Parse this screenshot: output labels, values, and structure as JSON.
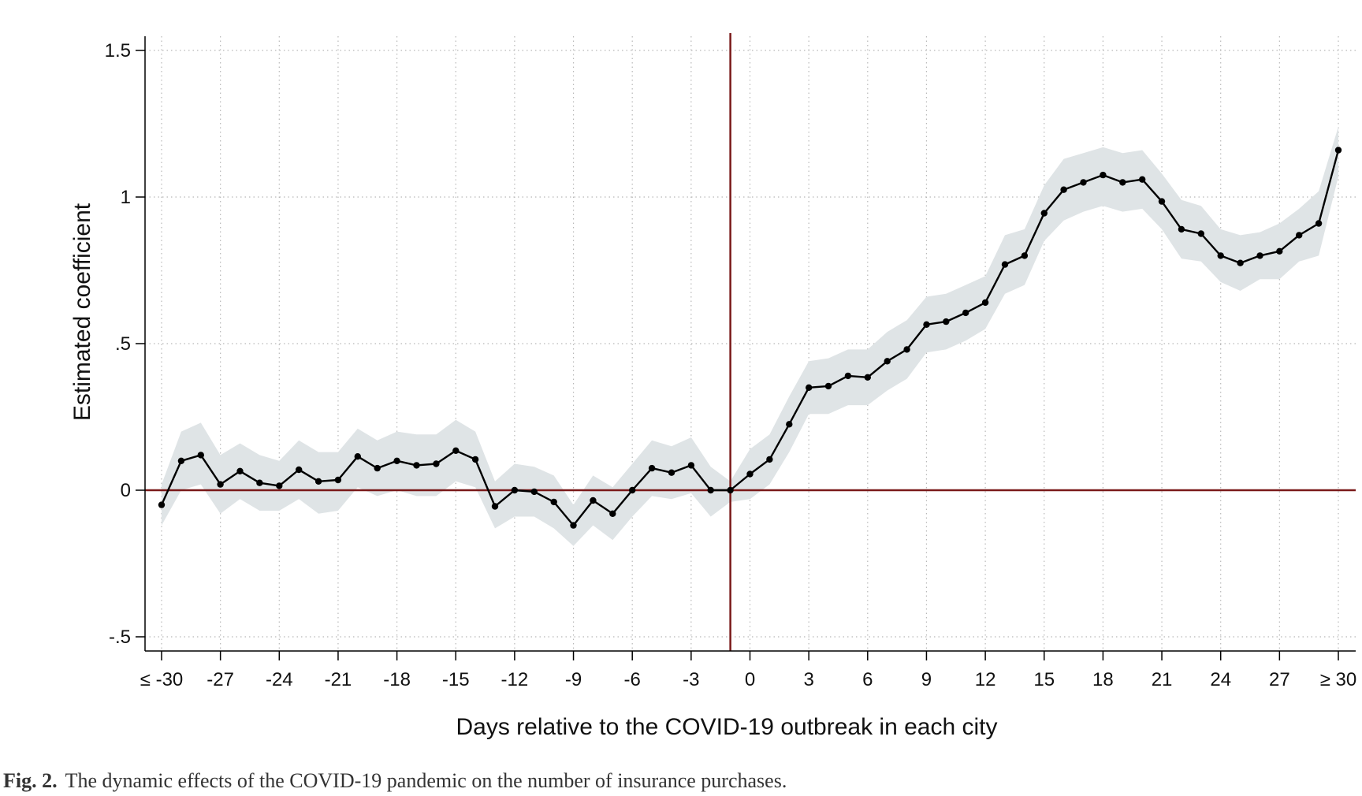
{
  "caption": {
    "label": "Fig. 2.",
    "text": "The dynamic effects of the COVID-19 pandemic on the number of insurance purchases."
  },
  "chart_data": {
    "type": "line",
    "xlabel": "Days relative to the COVID-19 outbreak in each city",
    "ylabel": "Estimated coefficient",
    "xlim": [
      -30,
      30
    ],
    "ylim": [
      -0.5,
      1.5
    ],
    "x_ticks": [
      -30,
      -27,
      -24,
      -21,
      -18,
      -15,
      -12,
      -9,
      -6,
      -3,
      0,
      3,
      6,
      9,
      12,
      15,
      18,
      21,
      24,
      27,
      30
    ],
    "x_tick_labels": [
      "≤ -30",
      "-27",
      "-24",
      "-21",
      "-18",
      "-15",
      "-12",
      "-9",
      "-6",
      "-3",
      "0",
      "3",
      "6",
      "9",
      "12",
      "15",
      "18",
      "21",
      "24",
      "27",
      "≥ 30"
    ],
    "y_ticks": [
      -0.5,
      0,
      0.5,
      1,
      1.5
    ],
    "y_tick_labels": [
      "-.5",
      "0",
      ".5",
      "1",
      "1.5"
    ],
    "reference_lines": {
      "x": -1,
      "y": 0,
      "color": "#7a1a1a"
    },
    "grid": true,
    "grid_style": "dotted",
    "colors": {
      "line": "#000000",
      "ci_band": "#dfe4e6",
      "reference": "#7a1a1a"
    },
    "x": [
      -30,
      -29,
      -28,
      -27,
      -26,
      -25,
      -24,
      -23,
      -22,
      -21,
      -20,
      -19,
      -18,
      -17,
      -16,
      -15,
      -14,
      -13,
      -12,
      -11,
      -10,
      -9,
      -8,
      -7,
      -6,
      -5,
      -4,
      -3,
      -2,
      -1,
      0,
      1,
      2,
      3,
      4,
      5,
      6,
      7,
      8,
      9,
      10,
      11,
      12,
      13,
      14,
      15,
      16,
      17,
      18,
      19,
      20,
      21,
      22,
      23,
      24,
      25,
      26,
      27,
      28,
      29,
      30
    ],
    "series": [
      {
        "values": [
          -0.05,
          0.1,
          0.12,
          0.02,
          0.065,
          0.025,
          0.015,
          0.07,
          0.03,
          0.035,
          0.115,
          0.075,
          0.1,
          0.085,
          0.09,
          0.135,
          0.105,
          -0.055,
          0.0,
          -0.005,
          -0.04,
          -0.12,
          -0.035,
          -0.08,
          0.0,
          0.075,
          0.06,
          0.085,
          0.0,
          0.0,
          0.055,
          0.105,
          0.225,
          0.35,
          0.355,
          0.39,
          0.385,
          0.44,
          0.48,
          0.565,
          0.575,
          0.605,
          0.64,
          0.77,
          0.8,
          0.945,
          1.025,
          1.05,
          1.075,
          1.05,
          1.06,
          0.985,
          0.89,
          0.875,
          0.8,
          0.775,
          0.8,
          0.815,
          0.87,
          0.91,
          1.16
        ],
        "ci_lower": [
          -0.12,
          0.0,
          0.02,
          -0.08,
          -0.03,
          -0.07,
          -0.07,
          -0.03,
          -0.08,
          -0.07,
          0.01,
          -0.02,
          0.0,
          -0.02,
          -0.02,
          0.03,
          0.01,
          -0.13,
          -0.09,
          -0.09,
          -0.13,
          -0.19,
          -0.12,
          -0.17,
          -0.09,
          -0.02,
          -0.03,
          -0.01,
          -0.09,
          -0.04,
          -0.03,
          0.02,
          0.13,
          0.26,
          0.26,
          0.29,
          0.29,
          0.34,
          0.38,
          0.47,
          0.48,
          0.51,
          0.55,
          0.67,
          0.7,
          0.85,
          0.92,
          0.95,
          0.97,
          0.95,
          0.96,
          0.89,
          0.79,
          0.78,
          0.71,
          0.68,
          0.72,
          0.72,
          0.78,
          0.8,
          1.07
        ],
        "ci_upper": [
          0.02,
          0.2,
          0.23,
          0.12,
          0.16,
          0.12,
          0.1,
          0.17,
          0.13,
          0.13,
          0.21,
          0.17,
          0.2,
          0.19,
          0.19,
          0.24,
          0.2,
          0.03,
          0.09,
          0.08,
          0.05,
          -0.05,
          0.05,
          0.01,
          0.09,
          0.17,
          0.15,
          0.18,
          0.08,
          0.03,
          0.14,
          0.19,
          0.32,
          0.44,
          0.45,
          0.48,
          0.48,
          0.54,
          0.58,
          0.66,
          0.67,
          0.7,
          0.73,
          0.87,
          0.89,
          1.04,
          1.13,
          1.15,
          1.17,
          1.15,
          1.16,
          1.08,
          0.99,
          0.97,
          0.89,
          0.87,
          0.88,
          0.91,
          0.96,
          1.02,
          1.24
        ]
      }
    ]
  }
}
